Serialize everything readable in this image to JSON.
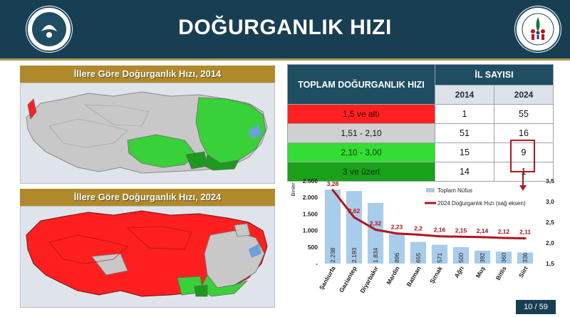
{
  "header": {
    "title": "DOĞURGANLIK HIZI"
  },
  "page": {
    "number": "10 / 59"
  },
  "maps": {
    "map_2014": {
      "title": "İllere Göre Doğurganlık Hızı, 2014"
    },
    "map_2024": {
      "title": "İllere Göre Doğurganlık Hızı, 2024"
    }
  },
  "table": {
    "header_left": "TOPLAM DOĞURGANLIK HIZI",
    "header_right": "İL SAYISI",
    "years": [
      "2014",
      "2024"
    ],
    "rows": [
      {
        "label": "1,5 ve altı",
        "v2014": "1",
        "v2024": "55",
        "color": "#ff2121"
      },
      {
        "label": "1,51 - 2,10",
        "v2014": "51",
        "v2024": "16",
        "color": "#d0d0d0"
      },
      {
        "label": "2,10 - 3,00",
        "v2014": "15",
        "v2024": "9",
        "color": "#33dd33"
      },
      {
        "label": "3 ve üzeri",
        "v2014": "14",
        "v2024": "1",
        "color": "#1aa11a"
      }
    ]
  },
  "chart_data": {
    "type": "bar",
    "categories": [
      "Şanlıurfa",
      "Gaziantep",
      "Diyarbakır",
      "Mardin",
      "Batman",
      "Şırnak",
      "Ağrı",
      "Muş",
      "Bitlis",
      "Siirt"
    ],
    "series": [
      {
        "name": "Toplam Nüfus",
        "type": "bar",
        "axis": "left",
        "values": [
          2238,
          2193,
          1834,
          896,
          655,
          571,
          500,
          392,
          360,
          336
        ],
        "labels": [
          "2.238",
          "2.193",
          "1.834",
          "896",
          "655",
          "571",
          "500",
          "392",
          "360",
          "336"
        ]
      },
      {
        "name": "2024 Doğurganlık Hızı (sağ eksen)",
        "type": "line",
        "axis": "right",
        "values": [
          3.28,
          2.62,
          2.32,
          2.23,
          2.2,
          2.16,
          2.15,
          2.14,
          2.12,
          2.11
        ],
        "labels": [
          "3,28",
          "2,62",
          "2,32",
          "2,23",
          "2,2",
          "2,16",
          "2,15",
          "2,14",
          "2,12",
          "2,11"
        ]
      }
    ],
    "ylabel": "Binler",
    "ylim": [
      0,
      2500
    ],
    "y_ticks": [
      "-",
      "500",
      "1.000",
      "1.500",
      "2.000",
      "2.500"
    ],
    "y2lim": [
      1.5,
      3.5
    ],
    "y2_ticks": [
      "1,5",
      "2,0",
      "2,5",
      "3,0",
      "3,5"
    ],
    "legend_position": "right",
    "colors": {
      "bar": "#a8cdea",
      "line": "#b5121b",
      "label": "#b5121b"
    }
  }
}
